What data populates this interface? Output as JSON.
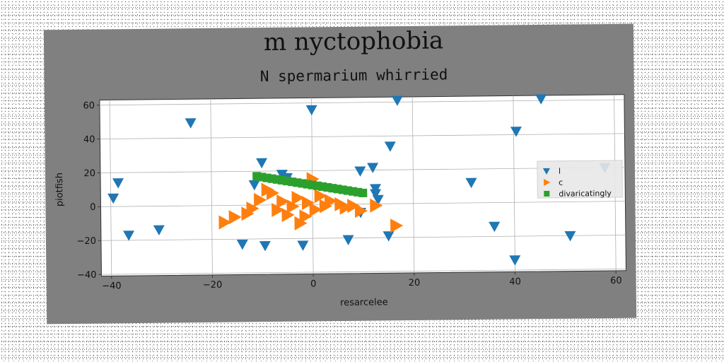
{
  "chart_data": {
    "type": "scatter",
    "title": "m nyctophobia",
    "subtitle": "N spermarium whirried",
    "xlabel": "resarcelee",
    "ylabel": "piotfish",
    "xlim": [
      -42,
      62
    ],
    "ylim": [
      -41,
      63
    ],
    "xticks": [
      -40,
      -20,
      0,
      20,
      40,
      60
    ],
    "yticks": [
      -40,
      -20,
      0,
      20,
      40,
      60
    ],
    "grid": true,
    "legend_position": "right",
    "series": [
      {
        "name": "l",
        "marker": "triangle-down",
        "color": "#1f77b4",
        "points": [
          [
            -39.5,
            5
          ],
          [
            -38.5,
            14
          ],
          [
            -36.5,
            -17
          ],
          [
            -30.5,
            -14
          ],
          [
            -24,
            49
          ],
          [
            -14,
            -23
          ],
          [
            -11.5,
            12
          ],
          [
            -10,
            25
          ],
          [
            -9.5,
            -24
          ],
          [
            -6,
            18
          ],
          [
            -5,
            16
          ],
          [
            -2,
            -24
          ],
          [
            0,
            56
          ],
          [
            7,
            -21
          ],
          [
            9.5,
            -5
          ],
          [
            9.5,
            19.5
          ],
          [
            12,
            21.5
          ],
          [
            12.5,
            9
          ],
          [
            12.5,
            6
          ],
          [
            13,
            2.5
          ],
          [
            15,
            -19
          ],
          [
            15.5,
            34
          ],
          [
            17,
            61
          ],
          [
            31.5,
            12
          ],
          [
            36,
            -14
          ],
          [
            40,
            -34
          ],
          [
            40.5,
            42
          ],
          [
            45.5,
            61
          ],
          [
            51,
            -20
          ],
          [
            58,
            20
          ]
        ]
      },
      {
        "name": "c",
        "marker": "triangle-right",
        "color": "#ff7f0e",
        "points": [
          [
            -17.5,
            -10
          ],
          [
            -15.5,
            -7
          ],
          [
            -13,
            -5
          ],
          [
            -12,
            -2
          ],
          [
            -10.5,
            3
          ],
          [
            -9,
            9
          ],
          [
            -8,
            7
          ],
          [
            -7,
            -3
          ],
          [
            -6,
            2
          ],
          [
            -5,
            -6
          ],
          [
            -4,
            -1
          ],
          [
            -3,
            4
          ],
          [
            -2.5,
            -11
          ],
          [
            -1.5,
            -7
          ],
          [
            -1,
            1
          ],
          [
            0,
            15
          ],
          [
            0.5,
            -3
          ],
          [
            1.5,
            5
          ],
          [
            2.5,
            -1
          ],
          [
            3.5,
            2
          ],
          [
            5.5,
            0
          ],
          [
            6.5,
            -2
          ],
          [
            8,
            -1
          ],
          [
            9.5,
            -4
          ],
          [
            12.5,
            -1
          ],
          [
            16.5,
            -13
          ]
        ]
      },
      {
        "name": "divaricatingly",
        "marker": "square",
        "color": "#2ca02c",
        "points": [
          [
            -11,
            17
          ],
          [
            -10,
            16.5
          ],
          [
            -9,
            16
          ],
          [
            -8,
            15.5
          ],
          [
            -7,
            15
          ],
          [
            -6,
            14.5
          ],
          [
            -5,
            14
          ],
          [
            -4,
            13.5
          ],
          [
            -3,
            13
          ],
          [
            -2,
            12.5
          ],
          [
            -1,
            12
          ],
          [
            0,
            11.5
          ],
          [
            1,
            11
          ],
          [
            2,
            10.5
          ],
          [
            3,
            10
          ],
          [
            4,
            9.5
          ],
          [
            5,
            9
          ],
          [
            6,
            8.5
          ],
          [
            7,
            8
          ],
          [
            8,
            7.5
          ],
          [
            9,
            7
          ],
          [
            10,
            6.5
          ]
        ]
      }
    ]
  }
}
